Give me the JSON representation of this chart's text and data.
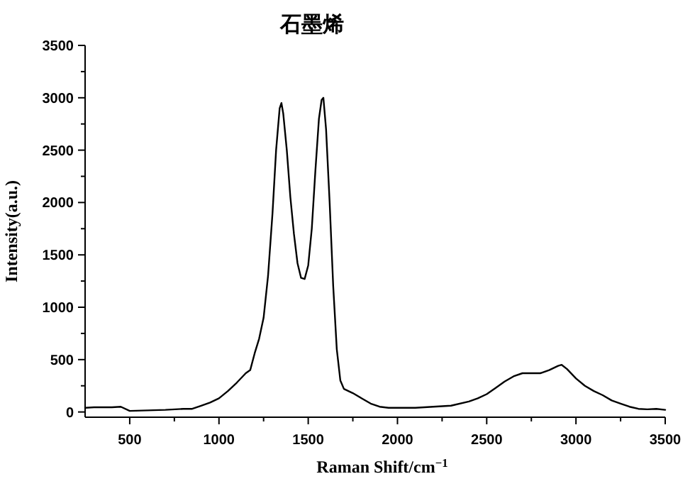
{
  "chart_data": {
    "type": "line",
    "title": "石墨烯",
    "xlabel": "Raman Shift/cm$^{−1}$",
    "ylabel": "Intensity(a.u.)",
    "xlim": [
      250,
      3500
    ],
    "ylim": [
      -50,
      3500
    ],
    "xticks": [
      500,
      1000,
      1500,
      2000,
      2500,
      3000,
      3500
    ],
    "yticks": [
      0,
      500,
      1000,
      1500,
      2000,
      2500,
      3000,
      3500
    ],
    "series": [
      {
        "color": "#000000",
        "x": [
          250,
          300,
          400,
          450,
          500,
          600,
          700,
          800,
          850,
          900,
          950,
          1000,
          1050,
          1100,
          1150,
          1175,
          1200,
          1225,
          1250,
          1275,
          1300,
          1320,
          1340,
          1350,
          1360,
          1380,
          1400,
          1420,
          1440,
          1460,
          1480,
          1500,
          1520,
          1540,
          1560,
          1575,
          1585,
          1600,
          1620,
          1640,
          1660,
          1680,
          1700,
          1750,
          1800,
          1850,
          1900,
          1950,
          2000,
          2100,
          2200,
          2300,
          2400,
          2450,
          2500,
          2550,
          2600,
          2650,
          2700,
          2750,
          2800,
          2850,
          2900,
          2920,
          2950,
          3000,
          3050,
          3100,
          3150,
          3200,
          3250,
          3300,
          3350,
          3400,
          3450,
          3500
        ],
        "values": [
          40,
          45,
          45,
          50,
          10,
          15,
          20,
          30,
          30,
          60,
          90,
          130,
          200,
          280,
          370,
          400,
          560,
          700,
          900,
          1300,
          1900,
          2500,
          2900,
          2950,
          2850,
          2500,
          2050,
          1700,
          1420,
          1280,
          1270,
          1400,
          1750,
          2300,
          2800,
          2980,
          3000,
          2700,
          2000,
          1200,
          600,
          300,
          220,
          180,
          130,
          80,
          50,
          40,
          40,
          40,
          50,
          60,
          100,
          130,
          170,
          230,
          290,
          340,
          370,
          370,
          370,
          400,
          440,
          450,
          410,
          320,
          250,
          200,
          160,
          110,
          80,
          50,
          30,
          25,
          30,
          20
        ]
      }
    ]
  }
}
